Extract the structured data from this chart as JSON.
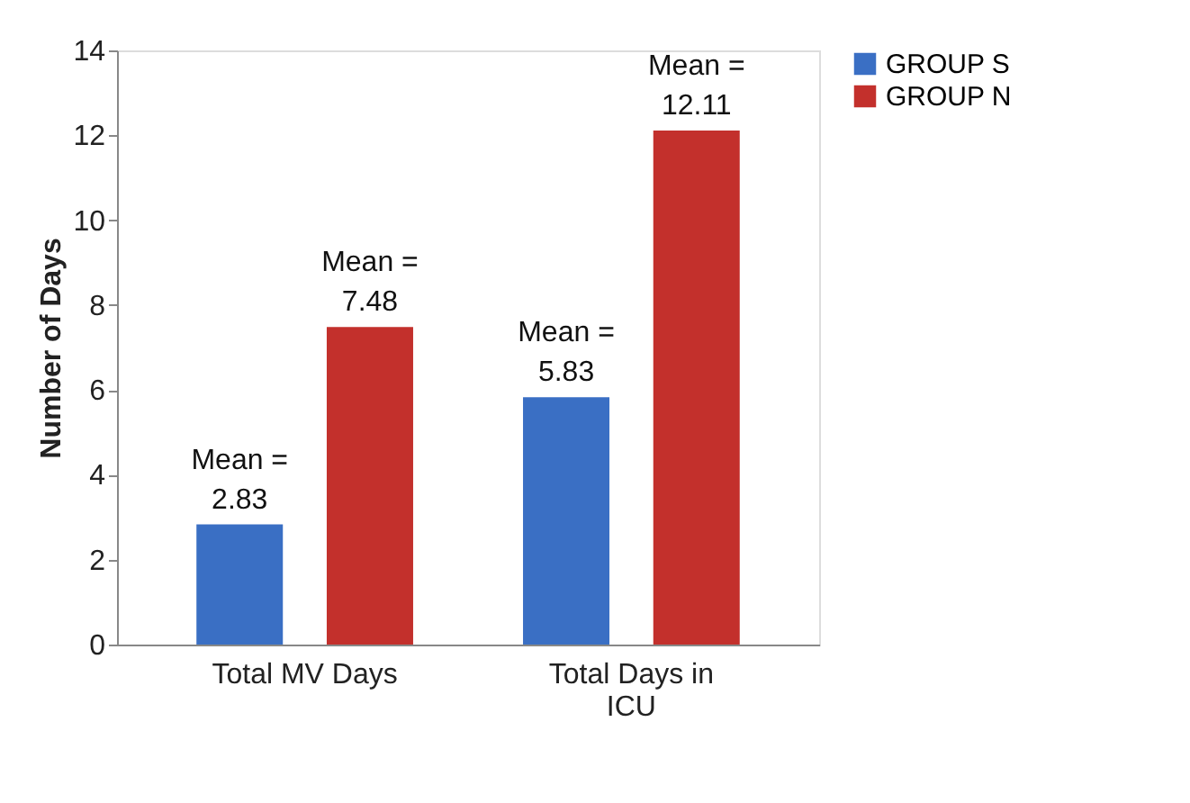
{
  "chart_data": {
    "type": "bar",
    "ylabel": "Number of Days",
    "categories": [
      "Total MV Days",
      "Total Days in ICU"
    ],
    "series": [
      {
        "name": "GROUP S",
        "color": "#3a6fc4",
        "values": [
          2.83,
          5.83
        ],
        "value_labels": [
          "Mean = 2.83",
          "Mean = 5.83"
        ]
      },
      {
        "name": "GROUP N",
        "color": "#c3302c",
        "values": [
          7.48,
          12.11
        ],
        "value_labels": [
          "Mean = 7.48",
          "Mean = 12.11"
        ]
      }
    ],
    "ylim": [
      0,
      14
    ],
    "yticks": [
      0,
      2,
      4,
      6,
      8,
      10,
      12,
      14
    ],
    "grid": false,
    "legend": "right"
  }
}
